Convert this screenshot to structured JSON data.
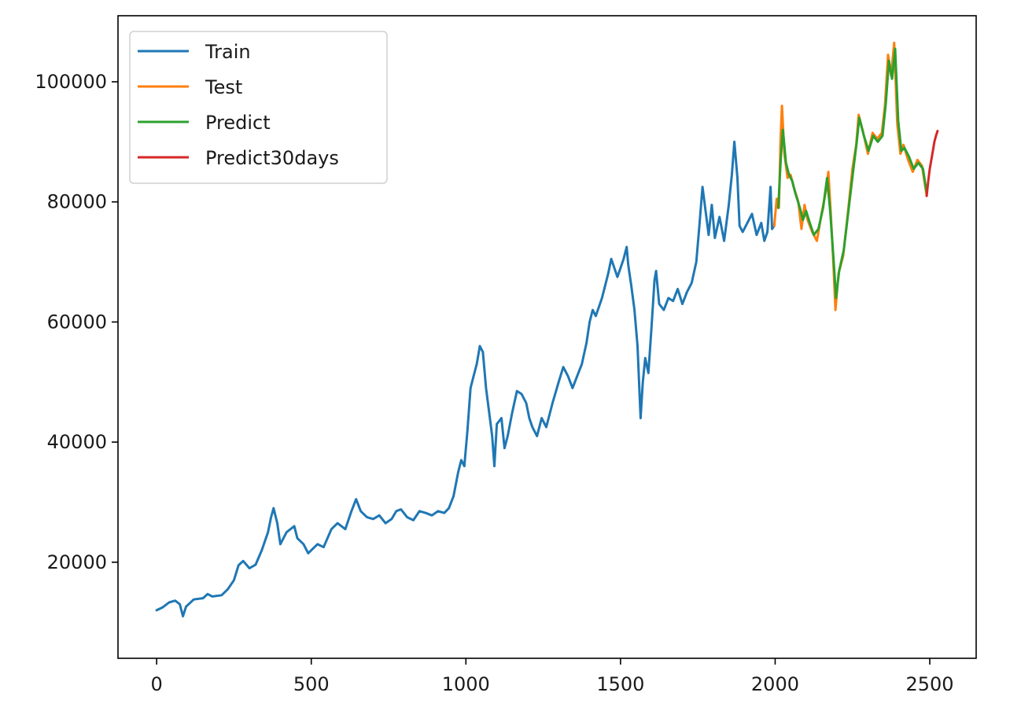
{
  "chart_data": {
    "type": "line",
    "title": "",
    "xlabel": "",
    "ylabel": "",
    "xlim": [
      -125,
      2650
    ],
    "ylim": [
      4000,
      111000
    ],
    "x_ticks": [
      0,
      500,
      1000,
      1500,
      2000,
      2500
    ],
    "y_ticks": [
      20000,
      40000,
      60000,
      80000,
      100000
    ],
    "grid": false,
    "legend_position": "upper-left",
    "series": [
      {
        "name": "Train",
        "color": "#1f77b4",
        "points": [
          [
            0,
            12000
          ],
          [
            20,
            12500
          ],
          [
            40,
            13300
          ],
          [
            60,
            13600
          ],
          [
            75,
            13000
          ],
          [
            85,
            11000
          ],
          [
            95,
            12600
          ],
          [
            120,
            13800
          ],
          [
            150,
            14000
          ],
          [
            165,
            14700
          ],
          [
            180,
            14300
          ],
          [
            210,
            14500
          ],
          [
            230,
            15500
          ],
          [
            250,
            17000
          ],
          [
            265,
            19500
          ],
          [
            280,
            20200
          ],
          [
            300,
            19000
          ],
          [
            320,
            19600
          ],
          [
            340,
            22000
          ],
          [
            360,
            25000
          ],
          [
            370,
            27500
          ],
          [
            378,
            29000
          ],
          [
            390,
            26500
          ],
          [
            400,
            23000
          ],
          [
            420,
            25000
          ],
          [
            445,
            26000
          ],
          [
            455,
            24000
          ],
          [
            475,
            23000
          ],
          [
            490,
            21500
          ],
          [
            520,
            23000
          ],
          [
            540,
            22500
          ],
          [
            565,
            25500
          ],
          [
            585,
            26500
          ],
          [
            610,
            25500
          ],
          [
            630,
            28500
          ],
          [
            645,
            30500
          ],
          [
            660,
            28500
          ],
          [
            680,
            27500
          ],
          [
            700,
            27200
          ],
          [
            720,
            27800
          ],
          [
            740,
            26500
          ],
          [
            760,
            27200
          ],
          [
            775,
            28500
          ],
          [
            790,
            28800
          ],
          [
            810,
            27500
          ],
          [
            830,
            27000
          ],
          [
            850,
            28500
          ],
          [
            870,
            28200
          ],
          [
            890,
            27800
          ],
          [
            910,
            28500
          ],
          [
            930,
            28200
          ],
          [
            945,
            29000
          ],
          [
            960,
            31000
          ],
          [
            975,
            35000
          ],
          [
            985,
            37000
          ],
          [
            995,
            36000
          ],
          [
            1005,
            42000
          ],
          [
            1015,
            49000
          ],
          [
            1025,
            51000
          ],
          [
            1035,
            53000
          ],
          [
            1045,
            56000
          ],
          [
            1055,
            55000
          ],
          [
            1065,
            49000
          ],
          [
            1075,
            45000
          ],
          [
            1085,
            41000
          ],
          [
            1092,
            36000
          ],
          [
            1100,
            43000
          ],
          [
            1115,
            44000
          ],
          [
            1125,
            39000
          ],
          [
            1135,
            41000
          ],
          [
            1150,
            45000
          ],
          [
            1165,
            48500
          ],
          [
            1180,
            48000
          ],
          [
            1195,
            46500
          ],
          [
            1205,
            44000
          ],
          [
            1215,
            42500
          ],
          [
            1230,
            41000
          ],
          [
            1245,
            44000
          ],
          [
            1260,
            42500
          ],
          [
            1280,
            46500
          ],
          [
            1300,
            50000
          ],
          [
            1315,
            52500
          ],
          [
            1330,
            51000
          ],
          [
            1345,
            49000
          ],
          [
            1360,
            51000
          ],
          [
            1375,
            53000
          ],
          [
            1390,
            56500
          ],
          [
            1400,
            60000
          ],
          [
            1410,
            62000
          ],
          [
            1420,
            61000
          ],
          [
            1430,
            62500
          ],
          [
            1440,
            64000
          ],
          [
            1450,
            66000
          ],
          [
            1460,
            68000
          ],
          [
            1470,
            70500
          ],
          [
            1480,
            69000
          ],
          [
            1490,
            67500
          ],
          [
            1500,
            69000
          ],
          [
            1510,
            70500
          ],
          [
            1520,
            72500
          ],
          [
            1525,
            69500
          ],
          [
            1535,
            66000
          ],
          [
            1545,
            62000
          ],
          [
            1555,
            56000
          ],
          [
            1565,
            44000
          ],
          [
            1572,
            50000
          ],
          [
            1580,
            54000
          ],
          [
            1590,
            51500
          ],
          [
            1600,
            59000
          ],
          [
            1610,
            67000
          ],
          [
            1615,
            68500
          ],
          [
            1625,
            63000
          ],
          [
            1640,
            62000
          ],
          [
            1655,
            64000
          ],
          [
            1670,
            63500
          ],
          [
            1685,
            65500
          ],
          [
            1700,
            63000
          ],
          [
            1715,
            65000
          ],
          [
            1730,
            66500
          ],
          [
            1745,
            70000
          ],
          [
            1755,
            76000
          ],
          [
            1765,
            82500
          ],
          [
            1775,
            78500
          ],
          [
            1785,
            74500
          ],
          [
            1795,
            79500
          ],
          [
            1805,
            74000
          ],
          [
            1820,
            77500
          ],
          [
            1835,
            73500
          ],
          [
            1850,
            79500
          ],
          [
            1860,
            84500
          ],
          [
            1868,
            90000
          ],
          [
            1878,
            84000
          ],
          [
            1885,
            76000
          ],
          [
            1895,
            75000
          ],
          [
            1910,
            76500
          ],
          [
            1925,
            78000
          ],
          [
            1940,
            74500
          ],
          [
            1955,
            76500
          ],
          [
            1965,
            73500
          ],
          [
            1975,
            75000
          ],
          [
            1985,
            82500
          ],
          [
            1990,
            75500
          ],
          [
            1997,
            76000
          ]
        ]
      },
      {
        "name": "Test",
        "color": "#ff7f0e",
        "points": [
          [
            1997,
            76000
          ],
          [
            2005,
            80500
          ],
          [
            2012,
            79000
          ],
          [
            2018,
            91000
          ],
          [
            2022,
            96000
          ],
          [
            2030,
            88000
          ],
          [
            2040,
            84000
          ],
          [
            2050,
            84500
          ],
          [
            2060,
            82500
          ],
          [
            2075,
            80000
          ],
          [
            2085,
            75500
          ],
          [
            2095,
            79500
          ],
          [
            2105,
            77000
          ],
          [
            2120,
            75000
          ],
          [
            2135,
            73500
          ],
          [
            2150,
            78000
          ],
          [
            2165,
            82000
          ],
          [
            2172,
            85000
          ],
          [
            2180,
            78000
          ],
          [
            2188,
            70000
          ],
          [
            2195,
            62000
          ],
          [
            2205,
            68000
          ],
          [
            2220,
            71000
          ],
          [
            2235,
            78000
          ],
          [
            2250,
            85500
          ],
          [
            2262,
            89500
          ],
          [
            2270,
            94500
          ],
          [
            2285,
            91500
          ],
          [
            2300,
            88000
          ],
          [
            2315,
            91500
          ],
          [
            2330,
            90500
          ],
          [
            2345,
            91500
          ],
          [
            2355,
            96000
          ],
          [
            2365,
            104500
          ],
          [
            2375,
            101000
          ],
          [
            2385,
            106500
          ],
          [
            2395,
            93000
          ],
          [
            2405,
            88000
          ],
          [
            2415,
            89500
          ],
          [
            2430,
            87000
          ],
          [
            2445,
            85000
          ],
          [
            2460,
            87000
          ],
          [
            2475,
            86000
          ],
          [
            2490,
            81000
          ]
        ]
      },
      {
        "name": "Predict",
        "color": "#2ca02c",
        "points": [
          [
            2010,
            79000
          ],
          [
            2018,
            87000
          ],
          [
            2025,
            92000
          ],
          [
            2035,
            86500
          ],
          [
            2045,
            84500
          ],
          [
            2055,
            83500
          ],
          [
            2065,
            81500
          ],
          [
            2080,
            79000
          ],
          [
            2090,
            77000
          ],
          [
            2100,
            78500
          ],
          [
            2112,
            76500
          ],
          [
            2125,
            74500
          ],
          [
            2140,
            75500
          ],
          [
            2155,
            79000
          ],
          [
            2168,
            84000
          ],
          [
            2178,
            78500
          ],
          [
            2188,
            71000
          ],
          [
            2197,
            64000
          ],
          [
            2207,
            68500
          ],
          [
            2222,
            72000
          ],
          [
            2237,
            78500
          ],
          [
            2252,
            85000
          ],
          [
            2264,
            90000
          ],
          [
            2272,
            94000
          ],
          [
            2287,
            91000
          ],
          [
            2302,
            88500
          ],
          [
            2317,
            91000
          ],
          [
            2332,
            90000
          ],
          [
            2347,
            91000
          ],
          [
            2358,
            96500
          ],
          [
            2368,
            103500
          ],
          [
            2378,
            100500
          ],
          [
            2388,
            105500
          ],
          [
            2398,
            93500
          ],
          [
            2408,
            88500
          ],
          [
            2418,
            89000
          ],
          [
            2433,
            87500
          ],
          [
            2448,
            85500
          ],
          [
            2463,
            86500
          ],
          [
            2478,
            85500
          ],
          [
            2490,
            81500
          ]
        ]
      },
      {
        "name": "Predict30days",
        "color": "#d62728",
        "points": [
          [
            2490,
            81000
          ],
          [
            2495,
            83500
          ],
          [
            2500,
            85500
          ],
          [
            2505,
            87000
          ],
          [
            2510,
            88500
          ],
          [
            2515,
            90000
          ],
          [
            2520,
            91000
          ],
          [
            2525,
            91800
          ]
        ]
      }
    ]
  }
}
